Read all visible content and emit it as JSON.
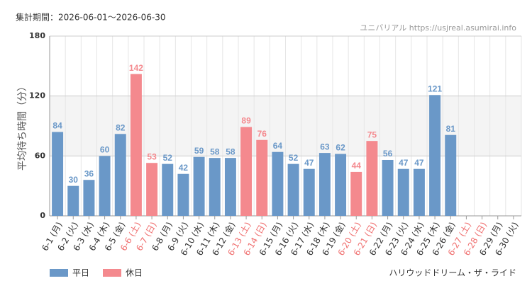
{
  "chart_data": {
    "type": "bar",
    "title": "集計期間：2026-06-01～2026-06-30",
    "source": "ユニバリアル  https://usjreal.asumirai.info",
    "ylabel": "平均待ち時間（分）",
    "caption": "ハリウッドドリーム・ザ・ライド",
    "categories": [
      "6-1 (月)",
      "6-2 (火)",
      "6-3 (水)",
      "6-4 (木)",
      "6-5 (金)",
      "6-6 (土)",
      "6-7 (日)",
      "6-8 (月)",
      "6-9 (火)",
      "6-10 (水)",
      "6-11 (木)",
      "6-12 (金)",
      "6-13 (土)",
      "6-14 (日)",
      "6-15 (月)",
      "6-16 (火)",
      "6-17 (水)",
      "6-18 (木)",
      "6-19 (金)",
      "6-20 (土)",
      "6-21 (日)",
      "6-22 (月)",
      "6-23 (火)",
      "6-24 (水)",
      "6-25 (木)",
      "6-26 (金)",
      "6-27 (土)",
      "6-28 (日)",
      "6-29 (月)",
      "6-30 (火)"
    ],
    "category_label_colors": [
      "#333",
      "#333",
      "#333",
      "#333",
      "#333",
      "#f07070",
      "#f07070",
      "#333",
      "#333",
      "#333",
      "#333",
      "#333",
      "#f07070",
      "#f07070",
      "#333",
      "#333",
      "#333",
      "#333",
      "#333",
      "#f07070",
      "#f07070",
      "#333",
      "#333",
      "#333",
      "#333",
      "#333",
      "#f07070",
      "#f07070",
      "#333",
      "#333"
    ],
    "series": [
      {
        "name": "平日",
        "color": "#6a98c8",
        "values": [
          84,
          30,
          36,
          60,
          82,
          null,
          null,
          52,
          42,
          59,
          58,
          58,
          null,
          null,
          64,
          52,
          47,
          63,
          62,
          null,
          null,
          56,
          47,
          47,
          121,
          81,
          null,
          null,
          null,
          null
        ]
      },
      {
        "name": "休日",
        "color": "#f4898e",
        "values": [
          null,
          null,
          null,
          null,
          null,
          142,
          53,
          null,
          null,
          null,
          null,
          null,
          89,
          76,
          null,
          null,
          null,
          null,
          null,
          44,
          75,
          null,
          null,
          null,
          null,
          null,
          null,
          null,
          null,
          null
        ]
      }
    ],
    "ylim": [
      0,
      180
    ],
    "yticks": [
      0,
      60,
      120,
      180
    ],
    "grid": true,
    "alternate_bands": true,
    "legend": "bottom-left"
  }
}
